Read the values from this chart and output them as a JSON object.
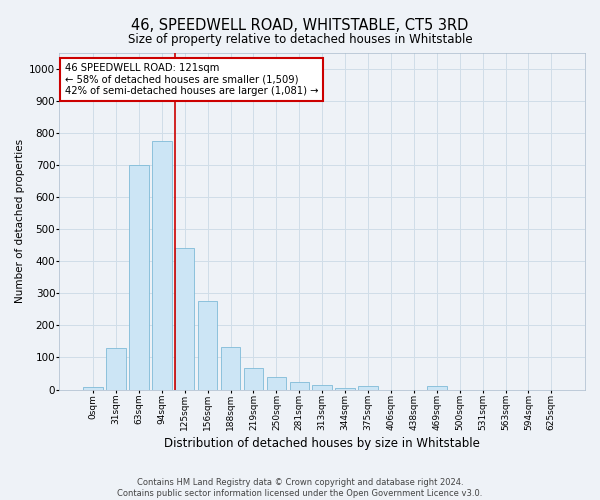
{
  "title": "46, SPEEDWELL ROAD, WHITSTABLE, CT5 3RD",
  "subtitle": "Size of property relative to detached houses in Whitstable",
  "xlabel": "Distribution of detached houses by size in Whitstable",
  "ylabel": "Number of detached properties",
  "bar_labels": [
    "0sqm",
    "31sqm",
    "63sqm",
    "94sqm",
    "125sqm",
    "156sqm",
    "188sqm",
    "219sqm",
    "250sqm",
    "281sqm",
    "313sqm",
    "344sqm",
    "375sqm",
    "406sqm",
    "438sqm",
    "469sqm",
    "500sqm",
    "531sqm",
    "563sqm",
    "594sqm",
    "625sqm"
  ],
  "bar_values": [
    8,
    128,
    700,
    775,
    440,
    275,
    133,
    68,
    38,
    22,
    13,
    5,
    10,
    0,
    0,
    12,
    0,
    0,
    0,
    0,
    0
  ],
  "bar_color": "#cce5f5",
  "bar_edge_color": "#7fbbd8",
  "vline_x_bar_index": 4,
  "annotation_text_line1": "46 SPEEDWELL ROAD: 121sqm",
  "annotation_text_line2": "← 58% of detached houses are smaller (1,509)",
  "annotation_text_line3": "42% of semi-detached houses are larger (1,081) →",
  "annotation_box_color": "#ffffff",
  "annotation_box_edge": "#cc0000",
  "vline_color": "#cc0000",
  "grid_color": "#d0dde8",
  "ylim": [
    0,
    1050
  ],
  "yticks": [
    0,
    100,
    200,
    300,
    400,
    500,
    600,
    700,
    800,
    900,
    1000
  ],
  "footer_line1": "Contains HM Land Registry data © Crown copyright and database right 2024.",
  "footer_line2": "Contains public sector information licensed under the Open Government Licence v3.0.",
  "background_color": "#eef2f7"
}
